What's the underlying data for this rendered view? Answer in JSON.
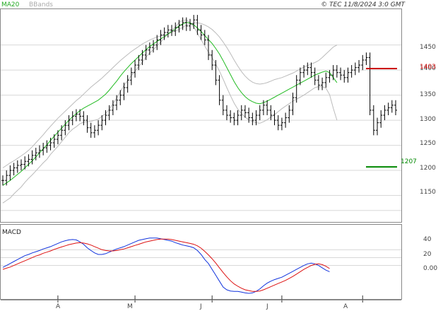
{
  "header": {
    "legend_ma": "MA20",
    "legend_bb": "BBands",
    "copyright": "© TEC 11/8/2024 3:0 GMT"
  },
  "colors": {
    "ma": "#22bb22",
    "bb": "#bbbbbb",
    "bars": "#000000",
    "macd": "#1133dd",
    "signal": "#dd1111",
    "resistance": "#cc0000",
    "support": "#008800",
    "grid": "#d8d8d8"
  },
  "chart_data": [
    {
      "type": "ohlc",
      "ylim": [
        1100,
        1520
      ],
      "yticks": [
        1150,
        1200,
        1250,
        1300,
        1350,
        1400,
        1450
      ],
      "xlabels": [
        {
          "label": "A",
          "index": 15
        },
        {
          "label": "M",
          "index": 36
        },
        {
          "label": "J",
          "index": 57
        },
        {
          "label": "J",
          "index": 76
        },
        {
          "label": "A",
          "index": 98
        }
      ],
      "series": [
        {
          "name": "MA20",
          "values": [
            1170,
            1175,
            1180,
            1186,
            1192,
            1198,
            1205,
            1212,
            1219,
            1227,
            1235,
            1243,
            1251,
            1260,
            1268,
            1276,
            1284,
            1292,
            1300,
            1307,
            1313,
            1319,
            1324,
            1328,
            1332,
            1336,
            1340,
            1346,
            1352,
            1360,
            1369,
            1378,
            1388,
            1397,
            1405,
            1413,
            1420,
            1427,
            1434,
            1441,
            1447,
            1452,
            1457,
            1462,
            1467,
            1472,
            1477,
            1482,
            1488,
            1492,
            1495,
            1494,
            1490,
            1484,
            1477,
            1469,
            1461,
            1453,
            1443,
            1432,
            1419,
            1405,
            1391,
            1377,
            1365,
            1355,
            1347,
            1341,
            1337,
            1334,
            1333,
            1335,
            1338,
            1342,
            1346,
            1350,
            1354,
            1358,
            1362,
            1366,
            1370,
            1374,
            1378,
            1382,
            1386,
            1390,
            1393,
            1396,
            1398,
            1395,
            1385,
            1375
          ]
        },
        {
          "name": "BBands upper",
          "values": [
            1205,
            1210,
            1215,
            1219,
            1224,
            1229,
            1234,
            1240,
            1247,
            1255,
            1263,
            1271,
            1280,
            1288,
            1296,
            1304,
            1311,
            1318,
            1325,
            1332,
            1339,
            1345,
            1352,
            1359,
            1366,
            1372,
            1378,
            1384,
            1391,
            1398,
            1405,
            1412,
            1419,
            1425,
            1431,
            1437,
            1442,
            1447,
            1452,
            1456,
            1460,
            1463,
            1466,
            1468,
            1470,
            1472,
            1475,
            1478,
            1481,
            1485,
            1490,
            1493,
            1494,
            1494,
            1493,
            1490,
            1486,
            1481,
            1474,
            1466,
            1456,
            1445,
            1433,
            1420,
            1408,
            1397,
            1388,
            1381,
            1376,
            1373,
            1372,
            1373,
            1375,
            1378,
            1381,
            1383,
            1385,
            1388,
            1391,
            1394,
            1398,
            1402,
            1406,
            1409,
            1412,
            1415,
            1419,
            1425,
            1432,
            1439,
            1446,
            1450
          ]
        },
        {
          "name": "BBands lower",
          "values": [
            1135,
            1140,
            1145,
            1153,
            1160,
            1167,
            1176,
            1184,
            1191,
            1199,
            1207,
            1215,
            1222,
            1232,
            1240,
            1248,
            1257,
            1266,
            1275,
            1282,
            1287,
            1293,
            1296,
            1297,
            1298,
            1300,
            1302,
            1308,
            1313,
            1322,
            1333,
            1344,
            1357,
            1369,
            1379,
            1389,
            1398,
            1407,
            1416,
            1426,
            1434,
            1441,
            1448,
            1456,
            1464,
            1472,
            1479,
            1486,
            1495,
            1499,
            1500,
            1495,
            1486,
            1474,
            1461,
            1448,
            1436,
            1425,
            1412,
            1398,
            1382,
            1365,
            1349,
            1334,
            1322,
            1313,
            1306,
            1301,
            1298,
            1295,
            1294,
            1297,
            1301,
            1306,
            1311,
            1317,
            1323,
            1328,
            1333,
            1338,
            1342,
            1346,
            1350,
            1355,
            1360,
            1365,
            1367,
            1367,
            1364,
            1351,
            1324,
            1300
          ]
        },
        {
          "name": "Close",
          "values": [
            1180,
            1190,
            1200,
            1205,
            1210,
            1212,
            1218,
            1222,
            1230,
            1235,
            1240,
            1245,
            1250,
            1255,
            1262,
            1270,
            1280,
            1290,
            1300,
            1308,
            1312,
            1308,
            1300,
            1285,
            1275,
            1280,
            1290,
            1300,
            1310,
            1320,
            1330,
            1340,
            1350,
            1365,
            1380,
            1395,
            1410,
            1420,
            1430,
            1440,
            1445,
            1450,
            1460,
            1470,
            1475,
            1480,
            1478,
            1485,
            1490,
            1495,
            1488,
            1492,
            1500,
            1480,
            1470,
            1460,
            1430,
            1410,
            1380,
            1340,
            1320,
            1310,
            1305,
            1300,
            1310,
            1320,
            1315,
            1305,
            1300,
            1310,
            1320,
            1330,
            1320,
            1310,
            1300,
            1290,
            1295,
            1305,
            1320,
            1345,
            1380,
            1395,
            1400,
            1405,
            1395,
            1380,
            1370,
            1375,
            1385,
            1390,
            1400,
            1395,
            1390,
            1385,
            1395,
            1400,
            1405,
            1410,
            1420,
            1425,
            1320,
            1280,
            1295,
            1310,
            1320,
            1325,
            1330,
            1320
          ]
        },
        {
          "name": "MACD",
          "values": [
            -5,
            0,
            5,
            10,
            15,
            20,
            25,
            28,
            32,
            35,
            38,
            42,
            45,
            48,
            52,
            56,
            60,
            63,
            65,
            66,
            65,
            60,
            54,
            45,
            38,
            32,
            28,
            28,
            30,
            34,
            38,
            42,
            45,
            48,
            52,
            56,
            60,
            64,
            66,
            68,
            70,
            70,
            70,
            68,
            66,
            64,
            62,
            58,
            55,
            52,
            50,
            48,
            45,
            38,
            28,
            15,
            5,
            -10,
            -25,
            -40,
            -55,
            -62,
            -65,
            -66,
            -66,
            -68,
            -70,
            -71,
            -70,
            -66,
            -60,
            -52,
            -45,
            -40,
            -36,
            -33,
            -30,
            -25,
            -20,
            -15,
            -10,
            -5,
            0,
            4,
            6,
            4,
            0,
            -6,
            -12,
            -16
          ]
        },
        {
          "name": "Signal",
          "values": [
            -10,
            -7,
            -4,
            0,
            4,
            8,
            12,
            16,
            20,
            24,
            27,
            31,
            34,
            37,
            41,
            44,
            47,
            50,
            53,
            55,
            57,
            58,
            57,
            55,
            52,
            48,
            44,
            40,
            38,
            37,
            37,
            38,
            40,
            42,
            45,
            48,
            51,
            54,
            57,
            60,
            62,
            64,
            66,
            67,
            67,
            67,
            66,
            64,
            62,
            60,
            58,
            56,
            54,
            50,
            44,
            36,
            27,
            17,
            6,
            -6,
            -18,
            -29,
            -39,
            -47,
            -53,
            -58,
            -62,
            -64,
            -66,
            -66,
            -65,
            -62,
            -58,
            -54,
            -50,
            -46,
            -42,
            -38,
            -33,
            -28,
            -22,
            -16,
            -10,
            -5,
            0,
            3,
            4,
            2,
            -2,
            -8
          ]
        }
      ],
      "macd_ylim": [
        -80,
        100
      ],
      "macd_yticks": [
        40,
        20,
        0
      ],
      "resistance": 1403,
      "support": 1207,
      "resistance_label": "1403",
      "support_label": "1207"
    }
  ],
  "macd_panel": {
    "label": "MACD",
    "ticks": [
      "40",
      "20",
      "0.00"
    ]
  },
  "price_ticks": [
    "1450",
    "1400",
    "1350",
    "1300",
    "1250",
    "1200",
    "1150"
  ]
}
